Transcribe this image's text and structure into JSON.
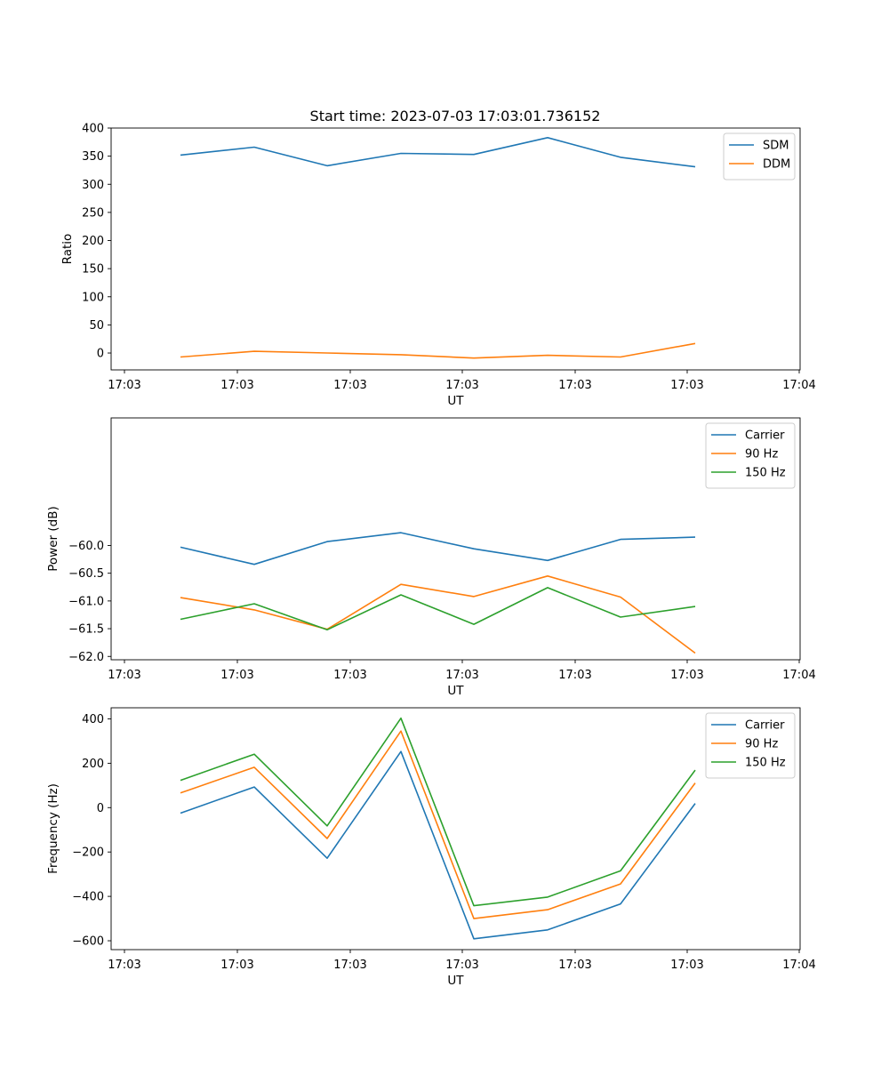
{
  "title": "Start time: 2023-07-03 17:03:01.736152",
  "chart_data": [
    {
      "type": "line",
      "xlabel": "UT",
      "ylabel": "Ratio",
      "x_tick_labels": [
        "17:03",
        "17:03",
        "17:03",
        "17:03",
        "17:03",
        "17:03",
        "17:04"
      ],
      "y_ticks": [
        0,
        50,
        100,
        150,
        200,
        250,
        300,
        350,
        400
      ],
      "ylim": [
        -30,
        400
      ],
      "legend_loc": "upper right",
      "series": [
        {
          "name": "SDM",
          "color": "#1f77b4",
          "values": [
            352,
            366,
            333,
            355,
            353,
            383,
            348,
            331
          ]
        },
        {
          "name": "DDM",
          "color": "#ff7f0e",
          "values": [
            -7,
            3,
            0,
            -3,
            -9,
            -4,
            -7,
            17
          ]
        }
      ]
    },
    {
      "type": "line",
      "xlabel": "UT",
      "ylabel": "Power (dB)",
      "x_tick_labels": [
        "17:03",
        "17:03",
        "17:03",
        "17:03",
        "17:03",
        "17:03",
        "17:04"
      ],
      "y_ticks": [
        -62.0,
        -61.5,
        -61.0,
        -60.5,
        -60.0
      ],
      "y_tick_labels": [
        "−62.0",
        "−61.5",
        "−61.0",
        "−60.5",
        "−60.0"
      ],
      "ylim": [
        -62.06,
        -57.7
      ],
      "legend_loc": "upper right",
      "series": [
        {
          "name": "Carrier",
          "color": "#1f77b4",
          "values": [
            -60.03,
            -60.34,
            -59.93,
            -59.77,
            -60.06,
            -60.27,
            -59.89,
            -59.85
          ]
        },
        {
          "name": "90 Hz",
          "color": "#ff7f0e",
          "values": [
            -60.94,
            -61.16,
            -61.51,
            -60.7,
            -60.92,
            -60.55,
            -60.93,
            -61.94
          ]
        },
        {
          "name": "150 Hz",
          "color": "#2ca02c",
          "values": [
            -61.33,
            -61.05,
            -61.52,
            -60.89,
            -61.42,
            -60.76,
            -61.29,
            -61.1
          ]
        }
      ]
    },
    {
      "type": "line",
      "xlabel": "UT",
      "ylabel": "Frequency (Hz)",
      "x_tick_labels": [
        "17:03",
        "17:03",
        "17:03",
        "17:03",
        "17:03",
        "17:03",
        "17:04"
      ],
      "y_ticks": [
        -600,
        -400,
        -200,
        0,
        200,
        400
      ],
      "y_tick_labels": [
        "−600",
        "−400",
        "−200",
        "0",
        "200",
        "400"
      ],
      "ylim": [
        -640,
        450
      ],
      "legend_loc": "upper right",
      "series": [
        {
          "name": "Carrier",
          "color": "#1f77b4",
          "values": [
            -25,
            93,
            -228,
            253,
            -591,
            -551,
            -434,
            19
          ]
        },
        {
          "name": "90 Hz",
          "color": "#ff7f0e",
          "values": [
            66,
            182,
            -139,
            345,
            -500,
            -460,
            -344,
            111
          ]
        },
        {
          "name": "150 Hz",
          "color": "#2ca02c",
          "values": [
            123,
            241,
            -82,
            403,
            -442,
            -403,
            -285,
            169
          ]
        }
      ]
    }
  ]
}
